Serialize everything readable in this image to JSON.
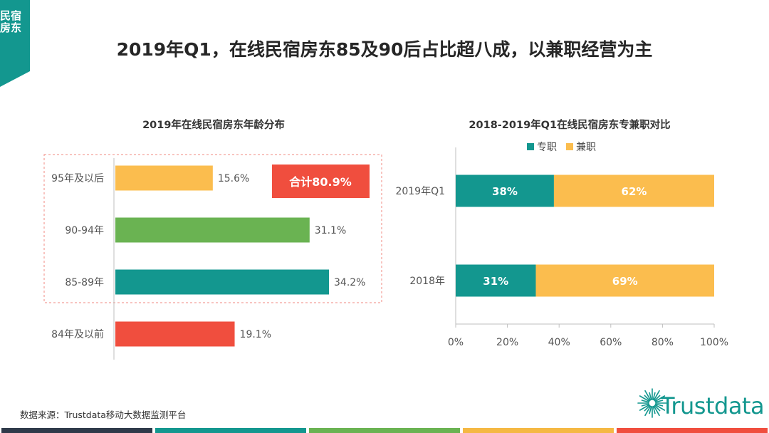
{
  "side_tab": {
    "text": "民宿房东",
    "color": "#13978f"
  },
  "title": "2019年Q1，在线民宿房东85及90后占比超八成，以兼职经营为主",
  "source": "数据来源：Trustdata移动大数据监测平台",
  "logo": {
    "text": "Trustdata",
    "icon": "sunburst-icon",
    "color": "#13978f"
  },
  "footer_colors": [
    "#2f3a4a",
    "#13978f",
    "#6ab352",
    "#f5b843",
    "#f04e3e"
  ],
  "chart_data": [
    {
      "type": "bar",
      "orientation": "horizontal",
      "title": "2019年在线民宿房东年龄分布",
      "categories": [
        "95年及以后",
        "90-94年",
        "85-89年",
        "84年及以前"
      ],
      "values": [
        15.6,
        31.1,
        34.2,
        19.1
      ],
      "value_labels": [
        "15.6%",
        "31.1%",
        "34.2%",
        "19.1%"
      ],
      "colors": [
        "#fbbd4e",
        "#6ab352",
        "#13978f",
        "#f04e3e"
      ],
      "xlim": [
        0,
        40
      ],
      "grid": false,
      "annotation": {
        "text": "合计80.9%",
        "color": "#f04e3e",
        "covers": [
          "95年及以后",
          "90-94年",
          "85-89年"
        ]
      }
    },
    {
      "type": "bar",
      "orientation": "horizontal",
      "stacked": true,
      "percent": true,
      "title": "2018-2019年Q1在线民宿房东专兼职对比",
      "categories": [
        "2019年Q1",
        "2018年"
      ],
      "series": [
        {
          "name": "专职",
          "values": [
            38,
            31
          ],
          "labels": [
            "38%",
            "31%"
          ],
          "color": "#13978f"
        },
        {
          "name": "兼职",
          "values": [
            62,
            69
          ],
          "labels": [
            "62%",
            "69%"
          ],
          "color": "#fbbd4e"
        }
      ],
      "xlim": [
        0,
        100
      ],
      "xticks": [
        "0%",
        "20%",
        "40%",
        "60%",
        "80%",
        "100%"
      ],
      "legend": "top",
      "grid": false
    }
  ]
}
